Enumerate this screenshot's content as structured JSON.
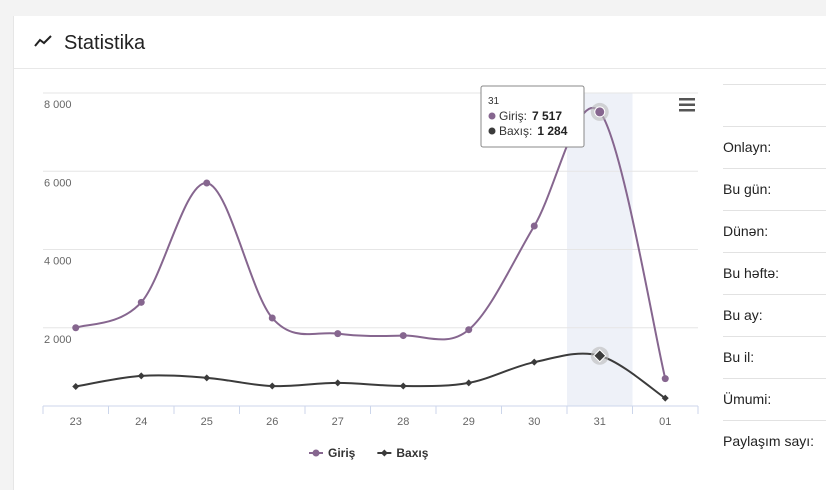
{
  "header": {
    "title": "Statistika"
  },
  "chart_data": {
    "type": "line",
    "categories": [
      "23",
      "24",
      "25",
      "26",
      "27",
      "28",
      "29",
      "30",
      "31",
      "01"
    ],
    "series": [
      {
        "name": "Giriş",
        "color": "#86668f",
        "marker": "circle",
        "values": [
          2000,
          2650,
          5700,
          2250,
          1850,
          1800,
          1950,
          4600,
          7517,
          700
        ],
        "value_labels": [
          null,
          null,
          null,
          null,
          null,
          null,
          null,
          null,
          "7 517",
          null
        ]
      },
      {
        "name": "Baxış",
        "color": "#3b3b3b",
        "marker": "diamond",
        "values": [
          500,
          770,
          720,
          510,
          590,
          510,
          590,
          1120,
          1284,
          200
        ],
        "value_labels": [
          null,
          null,
          null,
          null,
          null,
          null,
          null,
          null,
          "1 284",
          null
        ]
      }
    ],
    "ylim": [
      0,
      8000
    ],
    "yticks": [
      {
        "value": 2000,
        "label": "2 000"
      },
      {
        "value": 4000,
        "label": "4 000"
      },
      {
        "value": 6000,
        "label": "6 000"
      },
      {
        "value": 8000,
        "label": "8 000"
      }
    ],
    "grid": true,
    "highlight_index": 8,
    "tooltip": {
      "labels": [
        "Giriş:",
        "Baxış:"
      ]
    },
    "legend": "bottom"
  },
  "stats": {
    "rows": [
      "Onlayn:",
      "Bu gün:",
      "Dünən:",
      "Bu həftə:",
      "Bu ay:",
      "Bu il:",
      "Ümumi:",
      "Paylaşım sayı:"
    ]
  }
}
